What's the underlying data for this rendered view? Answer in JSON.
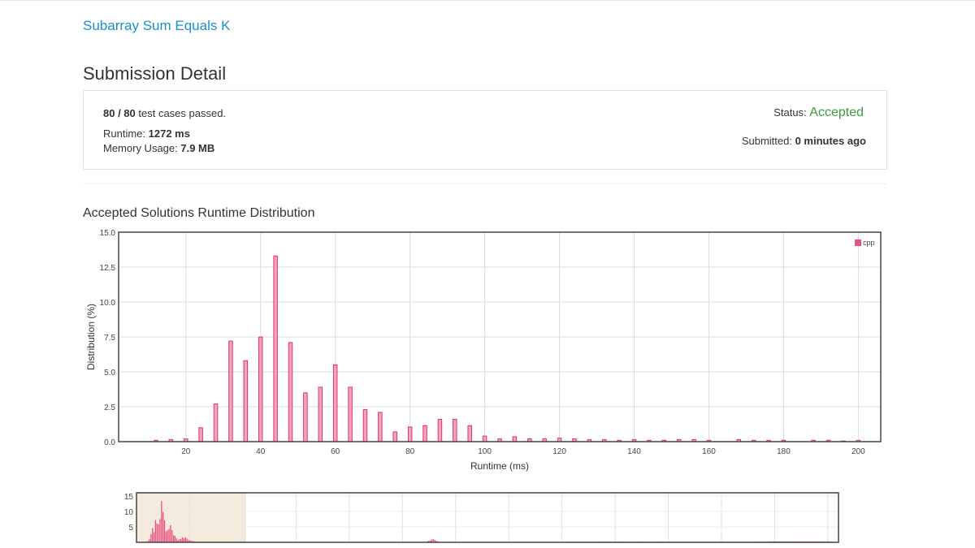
{
  "problem": {
    "title": "Subarray Sum Equals K"
  },
  "page": {
    "title": "Submission Detail"
  },
  "submission": {
    "passed_count": "80 / 80",
    "passed_suffix": " test cases passed.",
    "runtime_label": "Runtime: ",
    "runtime_value": "1272 ms",
    "memory_label": "Memory Usage: ",
    "memory_value": "7.9 MB",
    "status_label": "Status: ",
    "status_value": "Accepted",
    "submitted_label": "Submitted: ",
    "submitted_value": "0 minutes ago"
  },
  "colors": {
    "accent_link": "#1a90c8",
    "accepted": "#3c9c3c",
    "bar_fill": "#f7a1c0",
    "bar_stroke": "#d9376e",
    "legend_swatch": "#e8517f",
    "nav_bar": "#e8517f",
    "nav_selection": "#f5ebdc"
  },
  "chart_data": [
    {
      "type": "bar",
      "title": "Accepted Solutions Runtime Distribution",
      "xlabel": "Runtime (ms)",
      "ylabel": "Distribution (%)",
      "xlim": [
        2,
        206
      ],
      "ylim": [
        0,
        15
      ],
      "xticks": [
        20,
        40,
        60,
        80,
        100,
        120,
        140,
        160,
        180,
        200
      ],
      "yticks": [
        "0.0",
        "2.5",
        "5.0",
        "7.5",
        "10.0",
        "12.5",
        "15.0"
      ],
      "grid": true,
      "legend_position": "top-right",
      "series": [
        {
          "name": "cpp",
          "x": [
            12,
            16,
            20,
            24,
            28,
            32,
            36,
            40,
            44,
            48,
            52,
            56,
            60,
            64,
            68,
            72,
            76,
            80,
            84,
            88,
            92,
            96,
            100,
            104,
            108,
            112,
            116,
            120,
            124,
            128,
            132,
            136,
            140,
            144,
            148,
            152,
            156,
            160,
            168,
            172,
            176,
            180,
            188,
            192,
            196,
            200
          ],
          "values": [
            0.1,
            0.15,
            0.2,
            1.0,
            2.7,
            7.2,
            5.8,
            7.5,
            13.3,
            7.1,
            3.5,
            3.9,
            5.5,
            3.9,
            2.3,
            2.1,
            0.7,
            1.05,
            1.15,
            1.6,
            1.6,
            1.15,
            0.4,
            0.2,
            0.35,
            0.2,
            0.2,
            0.25,
            0.2,
            0.15,
            0.15,
            0.1,
            0.15,
            0.1,
            0.1,
            0.15,
            0.15,
            0.1,
            0.15,
            0.1,
            0.1,
            0.1,
            0.1,
            0.1,
            0.05,
            0.1
          ]
        }
      ]
    },
    {
      "type": "bar",
      "title": "",
      "xlabel": "",
      "ylabel": "",
      "ylim": [
        0,
        16
      ],
      "yticks": [
        "5",
        "10",
        "15"
      ],
      "grid": true,
      "selected_range_fraction": [
        0,
        0.155
      ],
      "series": [
        {
          "name": "cpp",
          "values": [
            0.1,
            0.15,
            0.2,
            0.4,
            1.0,
            2.7,
            4.6,
            3.3,
            7.2,
            6.1,
            5.8,
            7.5,
            13.3,
            9.8,
            7.1,
            3.5,
            3.9,
            4.3,
            5.5,
            3.9,
            2.3,
            2.1,
            1.3,
            0.7,
            1.05,
            1.15,
            1.6,
            1.3,
            1.6,
            1.15,
            0.8,
            0.6,
            0.4,
            0.4,
            0.3,
            0.2,
            0.2,
            0.2,
            0.15,
            0.1,
            0.1,
            0.1,
            0.1,
            0.1,
            0.1,
            0.1,
            0.1,
            0.1,
            0.1,
            0.1,
            0.1,
            0.1,
            0.1,
            0.1,
            0.1,
            0.1,
            0.1,
            0.1,
            0.1,
            0.1,
            0.1,
            0.1,
            0.1,
            0.1,
            0.1,
            0.1,
            0.1,
            0.1,
            0.1,
            0.1,
            0.1,
            0.1,
            0.1,
            0.1,
            0.1,
            0.1,
            0.1,
            0.1,
            0.1,
            0.1,
            0.1,
            0.1,
            0.1,
            0.1,
            0.1,
            0.1,
            0.1,
            0.1,
            0.1,
            0.1,
            0.1,
            0.1,
            0.1,
            0.1,
            0.1,
            0.1,
            0.1,
            0.1,
            0.1,
            0.1,
            0.1,
            0.1,
            0.1,
            0.1,
            0.1,
            0.1,
            0.1,
            0.1,
            0.1,
            0.1,
            0.1,
            0.1,
            0.1,
            0.1,
            0.1,
            0.1,
            0.1,
            0.1,
            0.1,
            0.1,
            0.1,
            0.1,
            0.1,
            0.1,
            0.1,
            0.1,
            0.1,
            0.1,
            0.1,
            0.1,
            0.1,
            0.1,
            0.1,
            0.1,
            0.1,
            0.1,
            0.1,
            0.1,
            0.1,
            0.1,
            0.1,
            0.1,
            0.1,
            0.1,
            0.1,
            0.1,
            0.1,
            0.1,
            0.1,
            0.1,
            0.1,
            0.1,
            0.1,
            0.1,
            0.1,
            0.1,
            0.1,
            0.1,
            0.1,
            0.1,
            0.1,
            0.1,
            0.1,
            0.1,
            0.1,
            0.1,
            0.1,
            0.1,
            0.1,
            0.1,
            0.1,
            0.1,
            0.1,
            0.1,
            0.1,
            0.1,
            0.1,
            0.1,
            0.1,
            0.1,
            0.1,
            0.1,
            0.1,
            0.1,
            0.1,
            0.1,
            0.1,
            0.1,
            0.2,
            0.3,
            0.5,
            0.6,
            0.9,
            1.1,
            0.8,
            0.5,
            0.3,
            0.2,
            0.1,
            0.1,
            0.1,
            0.1,
            0.1,
            0.1,
            0.1,
            0.1,
            0.1,
            0.1,
            0.1,
            0.1,
            0.1,
            0.1,
            0.1,
            0.1,
            0.1,
            0.1,
            0.1,
            0.1,
            0.1,
            0.1,
            0.1,
            0.1,
            0.1,
            0.1,
            0.1,
            0.1,
            0.1,
            0.1,
            0.1,
            0.1,
            0.1,
            0.1,
            0.1,
            0.1,
            0.1,
            0.1,
            0.1,
            0.1,
            0.1,
            0.1,
            0.1,
            0.1,
            0.1,
            0.1,
            0.1,
            0.1,
            0.1,
            0.1,
            0.1,
            0.1,
            0.1,
            0.1,
            0.1,
            0.1,
            0.1,
            0.1,
            0.1,
            0.1,
            0.1,
            0.1,
            0.1,
            0.1,
            0.1,
            0.1,
            0.1,
            0.1,
            0.1,
            0.1,
            0.1,
            0.1,
            0.1,
            0.1,
            0.1,
            0.1,
            0.1,
            0.1,
            0.1,
            0.1,
            0.1,
            0.1,
            0.1,
            0.1,
            0.1,
            0.1,
            0.2,
            0.2,
            0.2,
            0.2,
            0.2,
            0.2,
            0.2,
            0.2,
            0.2,
            0.2,
            0.2,
            0.2,
            0.2,
            0.2,
            0.2,
            0.2,
            0.2,
            0.2,
            0.2,
            0.2,
            0.2,
            0.2,
            0.2,
            0.2,
            0.2,
            0.2,
            0.2,
            0.2,
            0.2,
            0.2,
            0.2,
            0.2,
            0.2,
            0.2,
            0.2,
            0.2,
            0.2,
            0.2,
            0.2,
            0.2,
            0.2,
            0.2,
            0.2,
            0.2,
            0.2,
            0.2,
            0.2,
            0.2,
            0.2,
            0.2,
            0.2,
            0.2,
            0.2,
            0.2,
            0.2,
            0.2,
            0.2,
            0.2,
            0.2,
            0.2,
            0.2,
            0.2,
            0.2,
            0.2,
            0.2,
            0.2,
            0.2,
            0.2,
            0.2,
            0.2,
            0.2,
            0.2,
            0.2,
            0.2,
            0.2,
            0.2,
            0.2,
            0.2,
            0.2,
            0.2,
            0.2,
            0.2,
            0.2,
            0.2,
            0.2,
            0.2,
            0.2,
            0.2,
            0.2,
            0.2,
            0.2,
            0.2,
            0.2,
            0.2,
            0.2,
            0.2,
            0.2,
            0.2,
            0.2,
            0.2,
            0.2,
            0.2,
            0.2,
            0.2,
            0.2,
            0.2,
            0.2,
            0.2,
            0.2,
            0.2,
            0.2,
            0.2,
            0.2,
            0.2,
            0.2,
            0.2,
            0.2,
            0.2,
            0.2,
            0.2,
            0.2,
            0.2,
            0.2,
            0.2,
            0.2,
            0.2,
            0.2,
            0.2,
            0.2,
            0.2,
            0.2,
            0.2,
            0.2,
            0.3,
            0.3,
            0.3,
            0.3,
            0.3,
            0.3,
            0.3,
            0.3,
            0.3,
            0.3,
            0.3,
            0.3,
            0.3,
            0.3,
            0.3,
            0.3,
            0.3,
            0.3,
            0.3,
            0.3,
            0.3,
            0.3,
            0.3,
            0.3,
            0.3,
            0.3,
            0.3,
            0.3,
            0.3,
            0.3,
            0.3,
            0.3,
            0.3,
            0.3,
            0.3,
            0.3,
            0.3,
            0.3,
            0.3,
            0.3,
            0.3,
            0.3
          ]
        }
      ]
    }
  ]
}
